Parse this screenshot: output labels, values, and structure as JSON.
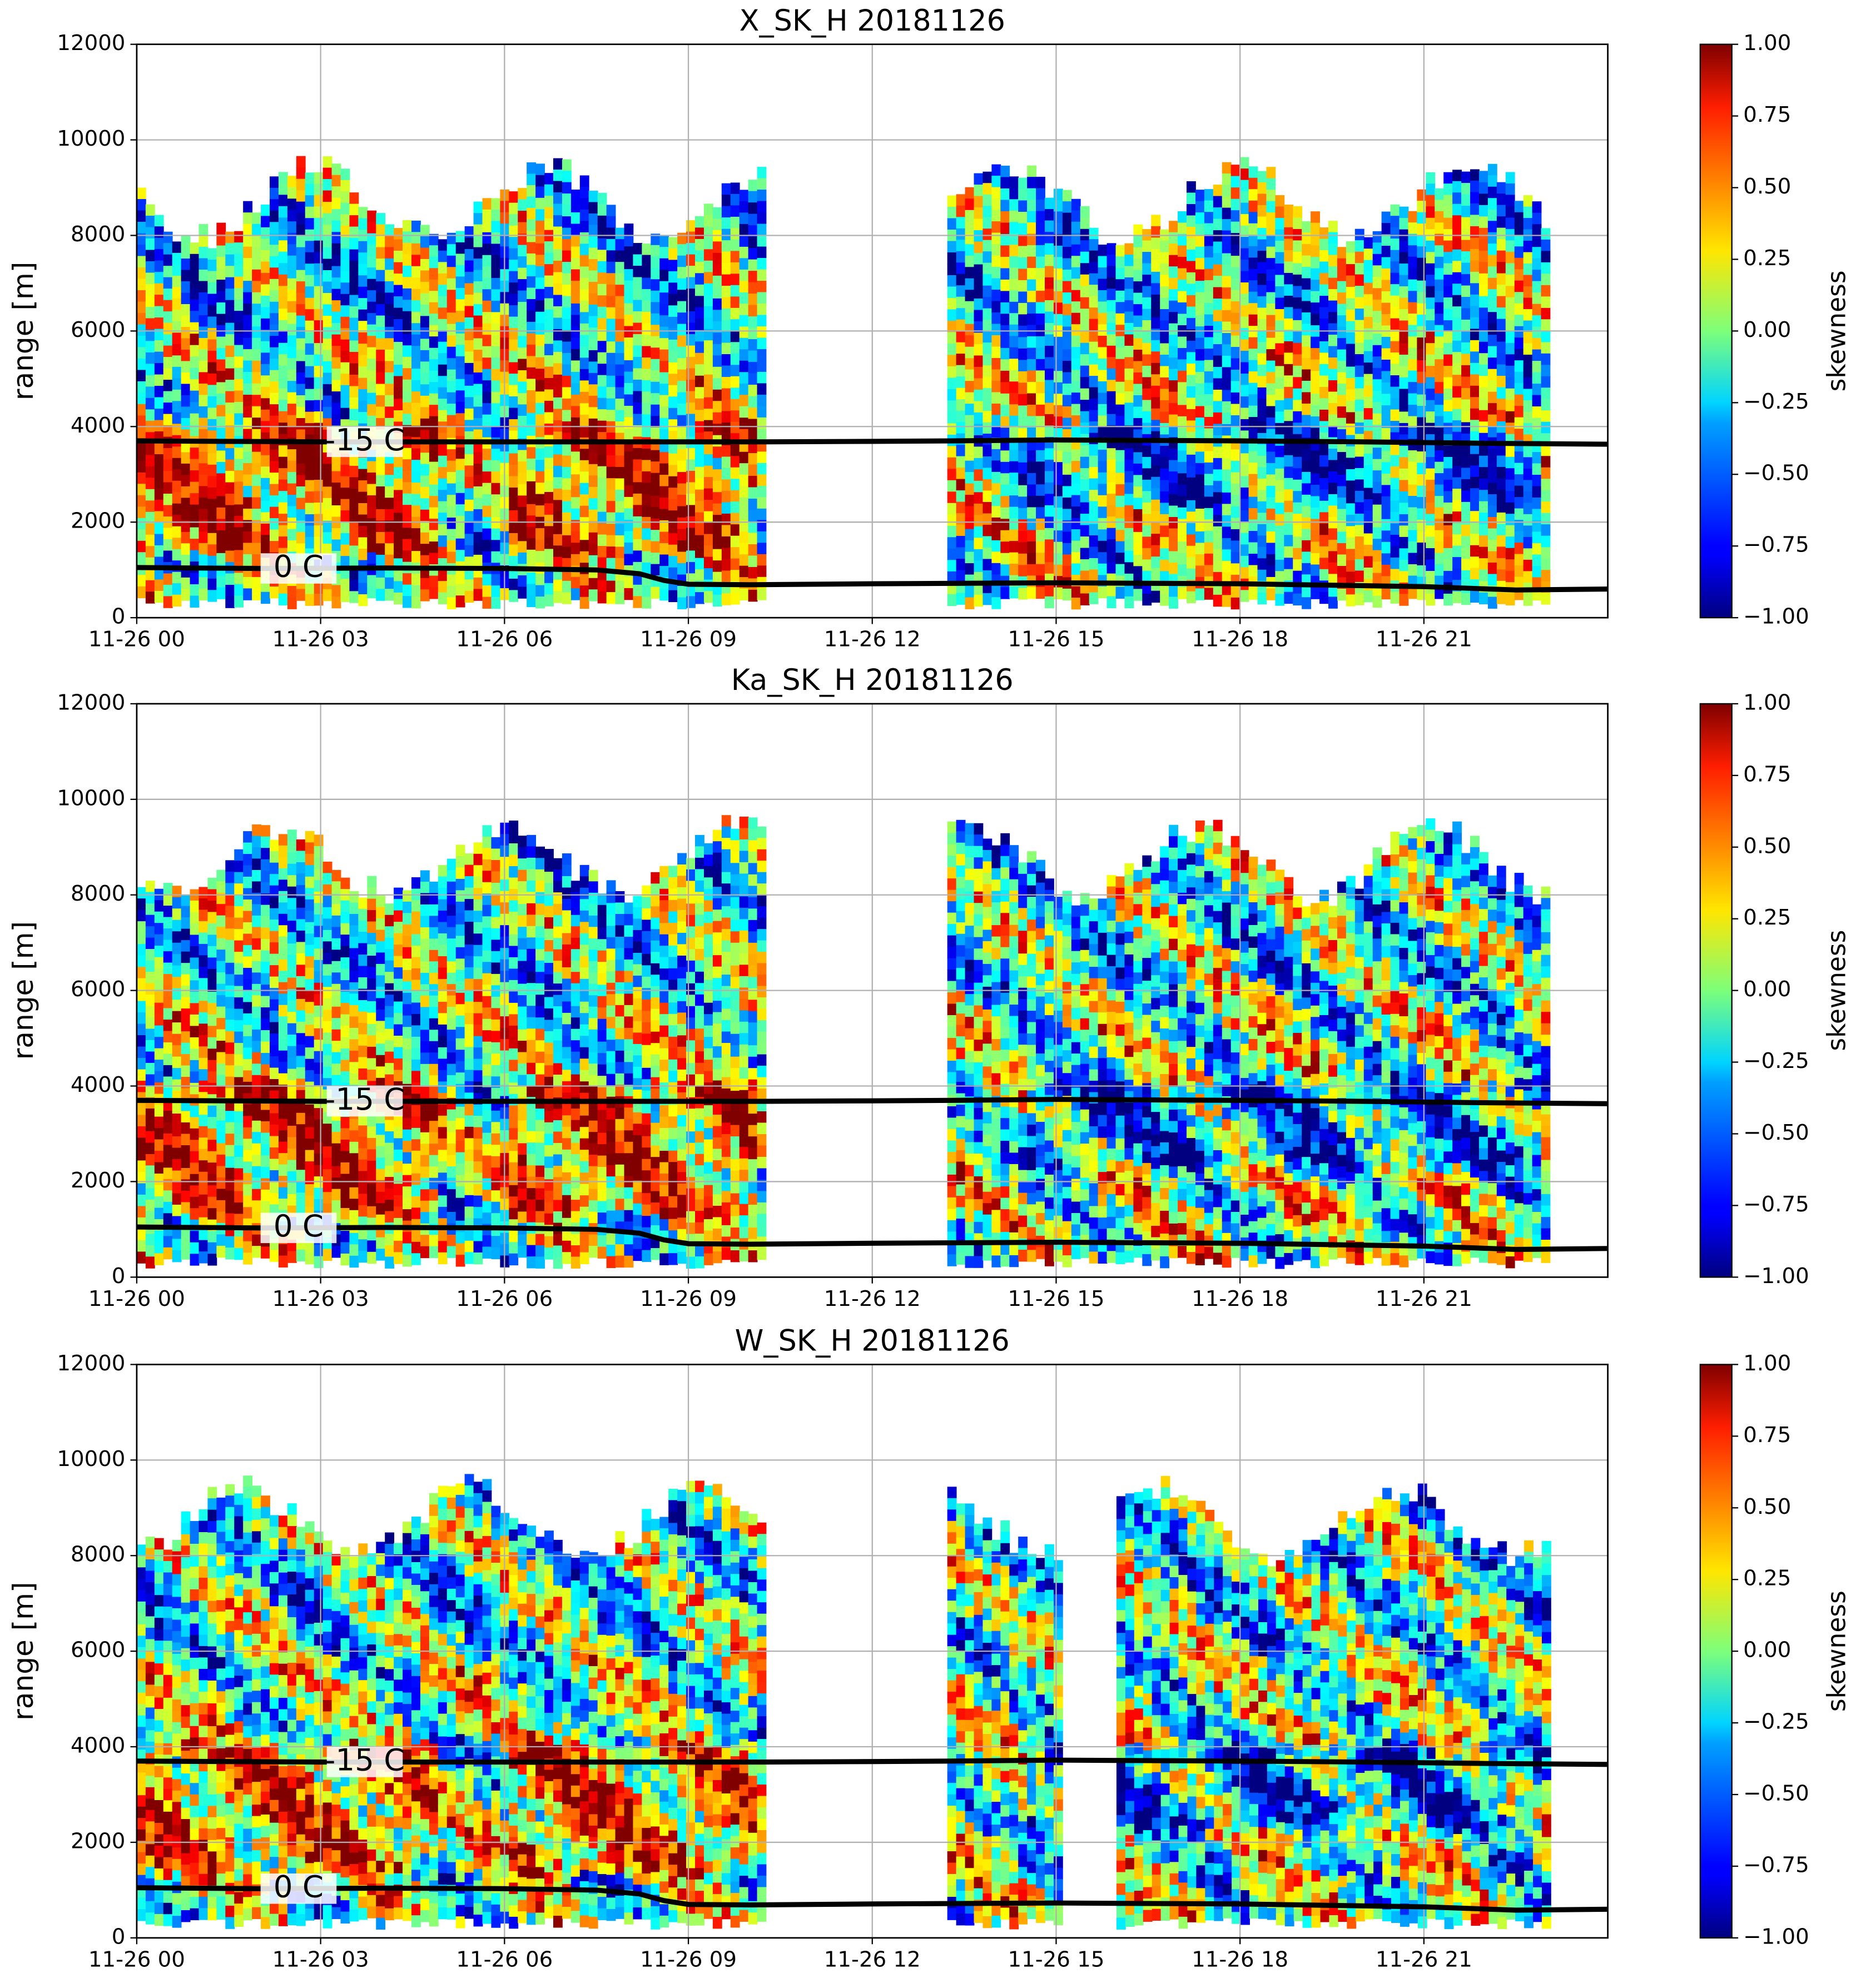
{
  "chart_data": [
    {
      "type": "heatmap",
      "title": "X_SK_H 20181126",
      "y_label": "range [m]",
      "xlim": [
        0,
        24
      ],
      "xticks": [
        {
          "value": 0,
          "label": "11-26 00"
        },
        {
          "value": 3,
          "label": "11-26 03"
        },
        {
          "value": 6,
          "label": "11-26 06"
        },
        {
          "value": 9,
          "label": "11-26 09"
        },
        {
          "value": 12,
          "label": "11-26 12"
        },
        {
          "value": 15,
          "label": "11-26 15"
        },
        {
          "value": 18,
          "label": "11-26 18"
        },
        {
          "value": 21,
          "label": "11-26 21"
        }
      ],
      "ylim": [
        0,
        12000
      ],
      "yticks": [
        0,
        2000,
        4000,
        6000,
        8000,
        10000,
        12000
      ],
      "grid": true,
      "isotherms": [
        {
          "label": "-15 C",
          "color": "#000000",
          "x": [
            0,
            3,
            6,
            9,
            10.2,
            12,
            13.3,
            15,
            18,
            20,
            22,
            24
          ],
          "y": [
            3700,
            3680,
            3680,
            3680,
            3680,
            3690,
            3700,
            3720,
            3700,
            3680,
            3650,
            3630
          ]
        },
        {
          "label": "0 C",
          "color": "#000000",
          "x": [
            0,
            2,
            4,
            6,
            7.5,
            8.2,
            8.6,
            9,
            10,
            12,
            15,
            18,
            21,
            22.5,
            24
          ],
          "y": [
            1050,
            1030,
            1040,
            1030,
            1000,
            920,
            780,
            700,
            690,
            710,
            730,
            710,
            650,
            580,
            600
          ]
        }
      ],
      "colorbar": {
        "label": "skewness",
        "colormap": "jet",
        "lim": [
          -1,
          1
        ],
        "ticks": [
          {
            "value": 1,
            "label": "1.00"
          },
          {
            "value": 0.75,
            "label": "0.75"
          },
          {
            "value": 0.5,
            "label": "0.50"
          },
          {
            "value": 0.25,
            "label": "0.25"
          },
          {
            "value": 0,
            "label": "0.00"
          },
          {
            "value": -0.25,
            "label": "−0.25"
          },
          {
            "value": -0.5,
            "label": "−0.50"
          },
          {
            "value": -0.75,
            "label": "−0.75"
          },
          {
            "value": -1,
            "label": "−1.00"
          }
        ]
      }
    },
    {
      "type": "heatmap",
      "title": "Ka_SK_H 20181126",
      "y_label": "range [m]",
      "xlim": [
        0,
        24
      ],
      "xticks": [
        {
          "value": 0,
          "label": "11-26 00"
        },
        {
          "value": 3,
          "label": "11-26 03"
        },
        {
          "value": 6,
          "label": "11-26 06"
        },
        {
          "value": 9,
          "label": "11-26 09"
        },
        {
          "value": 12,
          "label": "11-26 12"
        },
        {
          "value": 15,
          "label": "11-26 15"
        },
        {
          "value": 18,
          "label": "11-26 18"
        },
        {
          "value": 21,
          "label": "11-26 21"
        }
      ],
      "ylim": [
        0,
        12000
      ],
      "yticks": [
        0,
        2000,
        4000,
        6000,
        8000,
        10000,
        12000
      ],
      "grid": true,
      "isotherms": [
        {
          "label": "-15 C",
          "color": "#000000",
          "x": [
            0,
            3,
            6,
            9,
            10.2,
            12,
            13.3,
            15,
            18,
            20,
            22,
            24
          ],
          "y": [
            3700,
            3680,
            3680,
            3680,
            3680,
            3690,
            3700,
            3720,
            3700,
            3680,
            3650,
            3630
          ]
        },
        {
          "label": "0 C",
          "color": "#000000",
          "x": [
            0,
            2,
            4,
            6,
            7.5,
            8.2,
            8.6,
            9,
            10,
            12,
            15,
            18,
            21,
            22.5,
            24
          ],
          "y": [
            1050,
            1030,
            1040,
            1030,
            1000,
            920,
            780,
            700,
            690,
            710,
            730,
            710,
            650,
            580,
            600
          ]
        }
      ],
      "colorbar": {
        "label": "skewness",
        "colormap": "jet",
        "lim": [
          -1,
          1
        ],
        "ticks": [
          {
            "value": 1,
            "label": "1.00"
          },
          {
            "value": 0.75,
            "label": "0.75"
          },
          {
            "value": 0.5,
            "label": "0.50"
          },
          {
            "value": 0.25,
            "label": "0.25"
          },
          {
            "value": 0,
            "label": "0.00"
          },
          {
            "value": -0.25,
            "label": "−0.25"
          },
          {
            "value": -0.5,
            "label": "−0.50"
          },
          {
            "value": -0.75,
            "label": "−0.75"
          },
          {
            "value": -1,
            "label": "−1.00"
          }
        ]
      }
    },
    {
      "type": "heatmap",
      "title": "W_SK_H 20181126",
      "y_label": "range [m]",
      "xlim": [
        0,
        24
      ],
      "xticks": [
        {
          "value": 0,
          "label": "11-26 00"
        },
        {
          "value": 3,
          "label": "11-26 03"
        },
        {
          "value": 6,
          "label": "11-26 06"
        },
        {
          "value": 9,
          "label": "11-26 09"
        },
        {
          "value": 12,
          "label": "11-26 12"
        },
        {
          "value": 15,
          "label": "11-26 15"
        },
        {
          "value": 18,
          "label": "11-26 18"
        },
        {
          "value": 21,
          "label": "11-26 21"
        }
      ],
      "ylim": [
        0,
        12000
      ],
      "yticks": [
        0,
        2000,
        4000,
        6000,
        8000,
        10000,
        12000
      ],
      "grid": true,
      "isotherms": [
        {
          "label": "-15 C",
          "color": "#000000",
          "x": [
            0,
            3,
            6,
            9,
            10.2,
            12,
            13.3,
            15,
            18,
            20,
            22,
            24
          ],
          "y": [
            3700,
            3680,
            3680,
            3680,
            3680,
            3690,
            3700,
            3720,
            3700,
            3680,
            3650,
            3630
          ]
        },
        {
          "label": "0 C",
          "color": "#000000",
          "x": [
            0,
            2,
            4,
            6,
            7.5,
            8.2,
            8.6,
            9,
            10,
            12,
            15,
            18,
            21,
            22.5,
            24
          ],
          "y": [
            1050,
            1030,
            1040,
            1030,
            1000,
            920,
            780,
            700,
            690,
            710,
            730,
            710,
            650,
            580,
            600
          ]
        }
      ],
      "colorbar": {
        "label": "skewness",
        "colormap": "jet",
        "lim": [
          -1,
          1
        ],
        "ticks": [
          {
            "value": 1,
            "label": "1.00"
          },
          {
            "value": 0.75,
            "label": "0.75"
          },
          {
            "value": 0.5,
            "label": "0.50"
          },
          {
            "value": 0.25,
            "label": "0.25"
          },
          {
            "value": 0,
            "label": "0.00"
          },
          {
            "value": -0.25,
            "label": "−0.25"
          },
          {
            "value": -0.5,
            "label": "−0.50"
          },
          {
            "value": -0.75,
            "label": "−0.75"
          },
          {
            "value": -1,
            "label": "−1.00"
          }
        ]
      }
    }
  ]
}
